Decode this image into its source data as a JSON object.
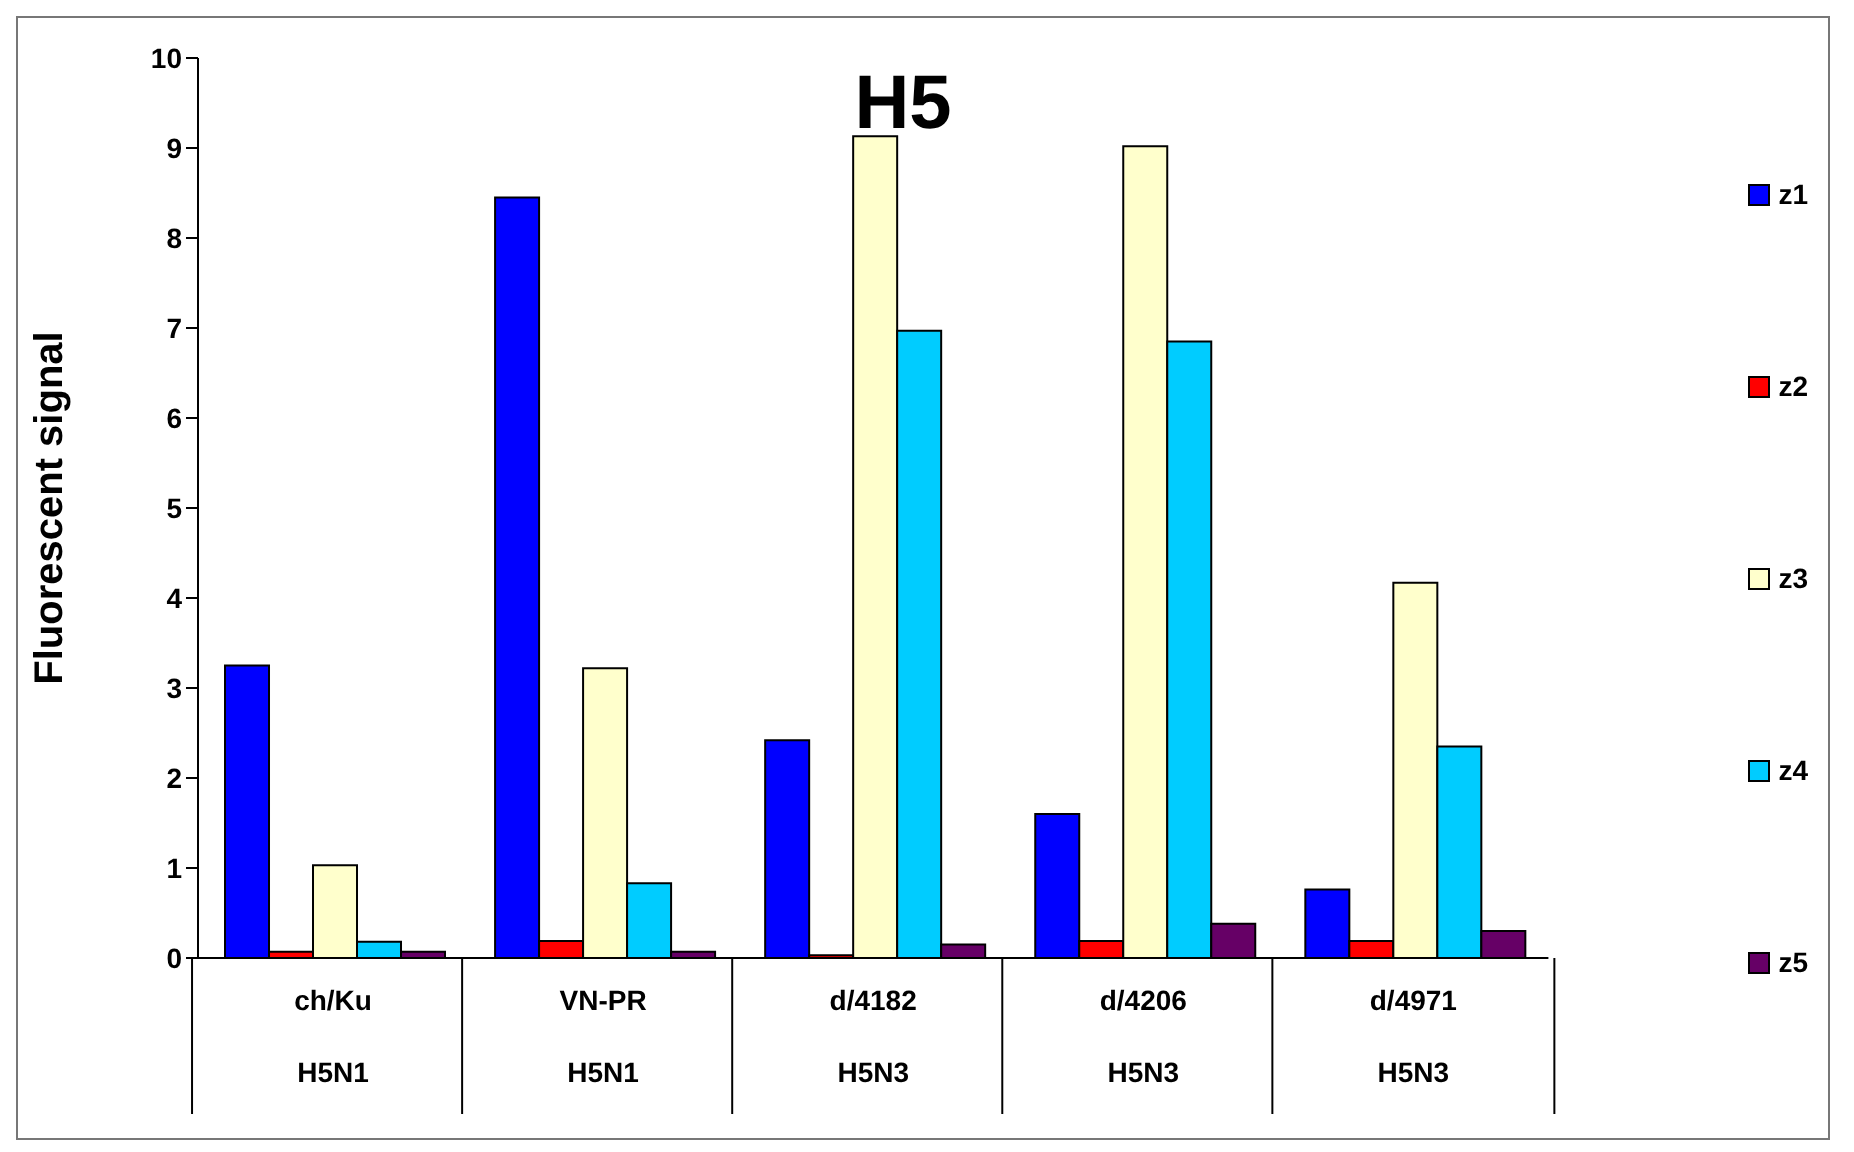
{
  "chart_data": {
    "type": "bar",
    "title": "H5",
    "ylabel": "Fluorescent  signal",
    "categories": [
      "ch/Ku\nH5N1",
      "VN-PR\nH5N1",
      "d/4182\nH5N3",
      "d/4206\nH5N3",
      "d/4971\nH5N3"
    ],
    "series": [
      {
        "name": "z1",
        "color": "#0000ff",
        "values": [
          3.25,
          8.45,
          2.42,
          1.6,
          0.76
        ]
      },
      {
        "name": "z2",
        "color": "#ff0000",
        "values": [
          0.07,
          0.19,
          0.03,
          0.19,
          0.19
        ]
      },
      {
        "name": "z3",
        "color": "#ffffcc",
        "values": [
          1.03,
          3.22,
          9.13,
          9.02,
          4.17
        ]
      },
      {
        "name": "z4",
        "color": "#00ccff",
        "values": [
          0.18,
          0.83,
          6.97,
          6.85,
          2.35
        ]
      },
      {
        "name": "z5",
        "color": "#660066",
        "values": [
          0.07,
          0.07,
          0.15,
          0.38,
          0.3
        ]
      }
    ],
    "ylim": [
      0,
      10
    ],
    "yticks": [
      0,
      1,
      2,
      3,
      4,
      5,
      6,
      7,
      8,
      9,
      10
    ],
    "grid": false,
    "legend": "right"
  }
}
